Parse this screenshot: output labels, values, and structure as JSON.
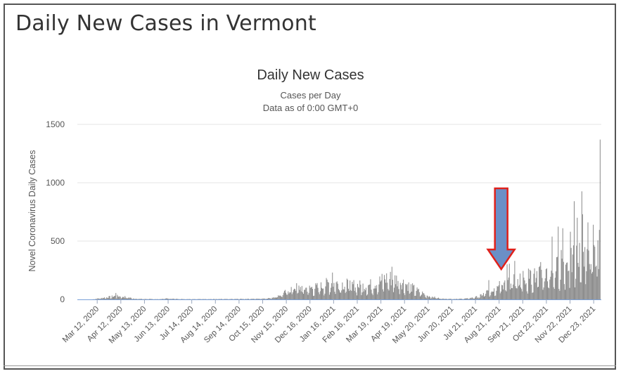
{
  "page": {
    "title": "Daily New Cases in Vermont"
  },
  "colors": {
    "bar": "#8c8c8c",
    "baseline": "#7aa0d8",
    "grid": "#e6e6e6",
    "arrow_fill": "#6b8fc7",
    "arrow_stroke": "#e0211b"
  },
  "annotation": {
    "type": "arrow",
    "icon": "down-arrow-icon",
    "points_to": "2021-08-21"
  },
  "chart_data": {
    "type": "bar",
    "title": "Daily New Cases",
    "subtitle": "Cases per Day",
    "subtitle2": "Data as of 0:00 GMT+0",
    "xlabel": "",
    "ylabel": "Novel Coronavirus Daily Cases",
    "ylim": [
      0,
      1500
    ],
    "yticks": [
      0,
      500,
      1000,
      1500
    ],
    "x_start": "2020-02-15",
    "x_end": "2022-01-02",
    "xtick_labels": [
      "Mar 12, 2020",
      "Apr 12, 2020",
      "May 13, 2020",
      "Jun 13, 2020",
      "Jul 14, 2020",
      "Aug 14, 2020",
      "Sep 14, 2020",
      "Oct 15, 2020",
      "Nov 15, 2020",
      "Dec 16, 2020",
      "Jan 16, 2021",
      "Feb 16, 2021",
      "Mar 19, 2021",
      "Apr 19, 2021",
      "May 20, 2021",
      "Jun 20, 2021",
      "Jul 21, 2021",
      "Aug 21, 2021",
      "Sep 21, 2021",
      "Oct 22, 2021",
      "Nov 22, 2021",
      "Dec 23, 2021"
    ],
    "xtick_dates": [
      "2020-03-12",
      "2020-04-12",
      "2020-05-13",
      "2020-06-13",
      "2020-07-14",
      "2020-08-14",
      "2020-09-14",
      "2020-10-15",
      "2020-11-15",
      "2020-12-16",
      "2021-01-16",
      "2021-02-16",
      "2021-03-19",
      "2021-04-19",
      "2021-05-20",
      "2021-06-20",
      "2021-07-21",
      "2021-08-21",
      "2021-09-21",
      "2021-10-22",
      "2021-11-22",
      "2021-12-23"
    ],
    "trend": [
      [
        "2020-03-05",
        0
      ],
      [
        "2020-03-20",
        15
      ],
      [
        "2020-04-05",
        30
      ],
      [
        "2020-04-15",
        25
      ],
      [
        "2020-05-01",
        5
      ],
      [
        "2020-06-01",
        2
      ],
      [
        "2020-06-10",
        8
      ],
      [
        "2020-07-01",
        3
      ],
      [
        "2020-09-01",
        3
      ],
      [
        "2020-10-10",
        6
      ],
      [
        "2020-10-25",
        12
      ],
      [
        "2020-11-10",
        50
      ],
      [
        "2020-11-25",
        110
      ],
      [
        "2020-12-10",
        100
      ],
      [
        "2020-12-28",
        110
      ],
      [
        "2021-01-10",
        150
      ],
      [
        "2021-01-25",
        140
      ],
      [
        "2021-02-10",
        130
      ],
      [
        "2021-02-25",
        120
      ],
      [
        "2021-03-10",
        140
      ],
      [
        "2021-03-25",
        190
      ],
      [
        "2021-04-05",
        190
      ],
      [
        "2021-04-20",
        140
      ],
      [
        "2021-05-05",
        80
      ],
      [
        "2021-05-20",
        30
      ],
      [
        "2021-06-05",
        8
      ],
      [
        "2021-06-25",
        4
      ],
      [
        "2021-07-10",
        8
      ],
      [
        "2021-07-25",
        25
      ],
      [
        "2021-08-10",
        90
      ],
      [
        "2021-08-25",
        130
      ],
      [
        "2021-09-10",
        170
      ],
      [
        "2021-09-25",
        200
      ],
      [
        "2021-10-10",
        210
      ],
      [
        "2021-10-25",
        240
      ],
      [
        "2021-11-10",
        300
      ],
      [
        "2021-11-25",
        340
      ],
      [
        "2021-12-10",
        420
      ],
      [
        "2021-12-25",
        380
      ],
      [
        "2021-12-31",
        500
      ]
    ],
    "peaks": [
      [
        "2020-04-05",
        55
      ],
      [
        "2021-01-14",
        230
      ],
      [
        "2021-04-02",
        280
      ],
      [
        "2021-09-10",
        330
      ],
      [
        "2021-10-14",
        320
      ],
      [
        "2021-11-12",
        610
      ],
      [
        "2021-11-22",
        580
      ],
      [
        "2021-12-01",
        700
      ],
      [
        "2021-12-08",
        730
      ],
      [
        "2021-12-15",
        660
      ],
      [
        "2021-12-22",
        640
      ],
      [
        "2021-12-31",
        1370
      ]
    ]
  }
}
